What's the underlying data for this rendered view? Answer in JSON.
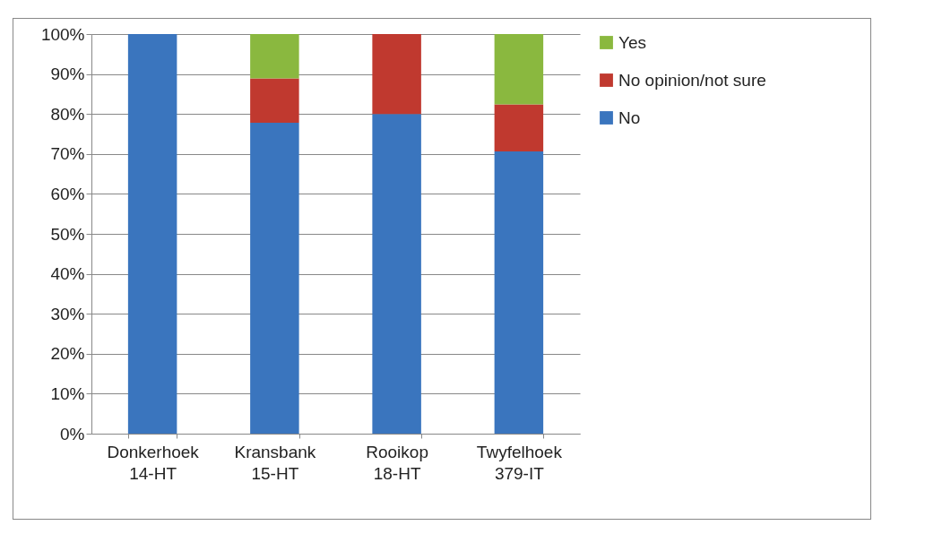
{
  "chart_data": {
    "type": "bar",
    "stacked": true,
    "categories": [
      "Donkerhoek 14-HT",
      "Kransbank 15-HT",
      "Rooikop 18-HT",
      "Twyfelhoek 379-IT"
    ],
    "series": [
      {
        "name": "No",
        "color": "#3a75be",
        "values": [
          100,
          77.8,
          80,
          70.6
        ]
      },
      {
        "name": "No opinion/not sure",
        "color": "#c0392f",
        "values": [
          0,
          11.1,
          20,
          11.8
        ]
      },
      {
        "name": "Yes",
        "color": "#8ab83f",
        "values": [
          0,
          11.1,
          0,
          17.6
        ]
      }
    ],
    "ylim": [
      0,
      100
    ],
    "yticks": [
      {
        "value": 0,
        "label": "0%"
      },
      {
        "value": 10,
        "label": "10%"
      },
      {
        "value": 20,
        "label": "20%"
      },
      {
        "value": 30,
        "label": "30%"
      },
      {
        "value": 40,
        "label": "40%"
      },
      {
        "value": 50,
        "label": "50%"
      },
      {
        "value": 60,
        "label": "60%"
      },
      {
        "value": 70,
        "label": "70%"
      },
      {
        "value": 80,
        "label": "80%"
      },
      {
        "value": 90,
        "label": "90%"
      },
      {
        "value": 100,
        "label": "100%"
      }
    ],
    "grid": "y",
    "legend": "right"
  }
}
